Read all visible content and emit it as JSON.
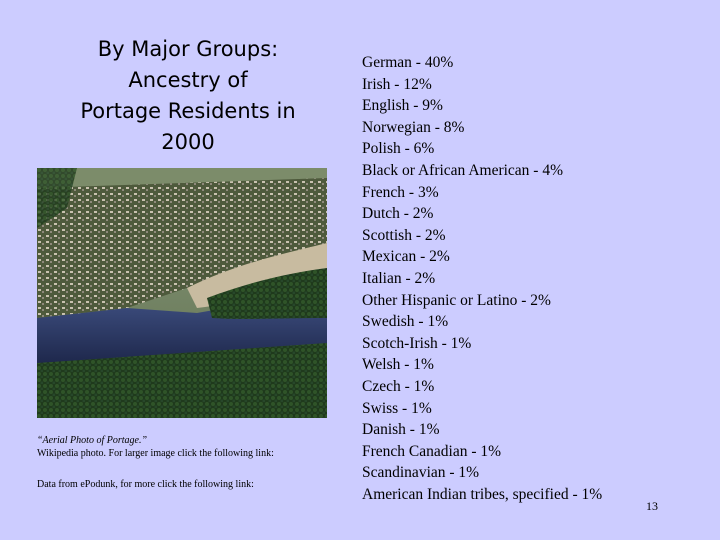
{
  "title_lines": [
    "By Major Groups:",
    "Ancestry of",
    "Portage Residents in",
    "2000"
  ],
  "photo": {
    "description_icon": "aerial-photo-image"
  },
  "caption": {
    "photo_title": "“Aerial Photo of Portage.”",
    "photo_source": "Wikipedia photo. For larger image click the following link:",
    "data_source": "Data from ePodunk, for more click the following link:"
  },
  "ancestry": [
    "German - 40%",
    "Irish - 12%",
    "English - 9%",
    "Norwegian - 8%",
    "Polish - 6%",
    "Black or African American - 4%",
    "French - 3%",
    "Dutch - 2%",
    "Scottish - 2%",
    "Mexican - 2%",
    "Italian - 2%",
    "Other Hispanic or Latino - 2%",
    "Swedish - 1%",
    "Scotch-Irish - 1%",
    "Welsh - 1%",
    "Czech - 1%",
    "Swiss - 1%",
    "Danish - 1%",
    "French Canadian - 1%",
    "Scandinavian - 1%",
    "American Indian tribes, specified - 1%"
  ],
  "slide_number": "13",
  "colors": {
    "background": "#ccccff"
  }
}
